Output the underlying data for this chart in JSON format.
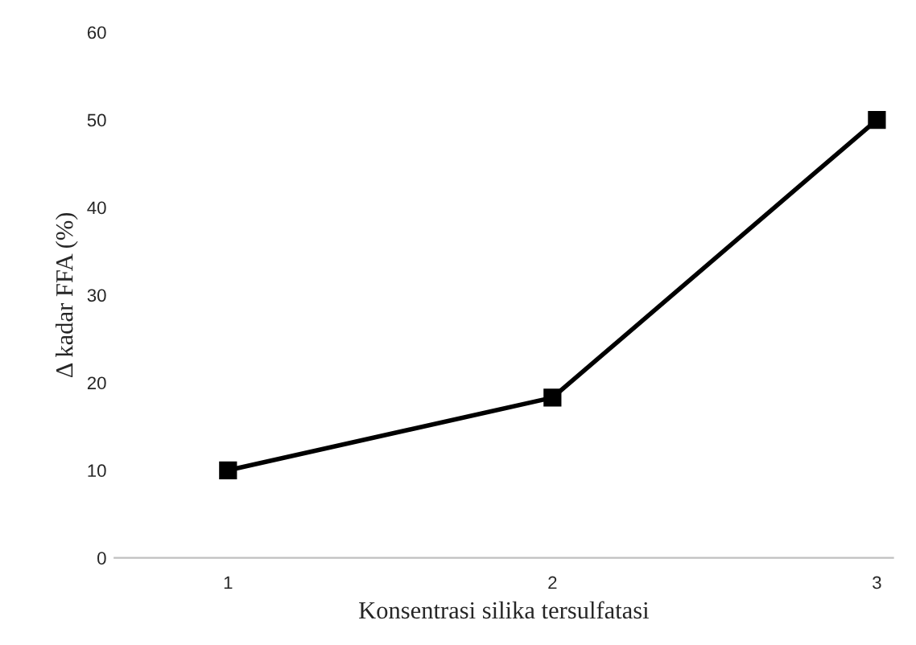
{
  "chart_data": {
    "type": "line",
    "xlabel": "Konsentrasi silika tersulfatasi",
    "ylabel": "Δ kadar FFA (%)",
    "categories": [
      "1",
      "2",
      "3"
    ],
    "series": [
      {
        "color": "#000000",
        "values": [
          10,
          18.3,
          50
        ]
      }
    ],
    "ylim": [
      0,
      60
    ],
    "yticks": [
      0,
      10,
      20,
      30,
      40,
      50,
      60
    ],
    "marker": "square",
    "line_style": "solid",
    "grid": false,
    "legend": false
  }
}
